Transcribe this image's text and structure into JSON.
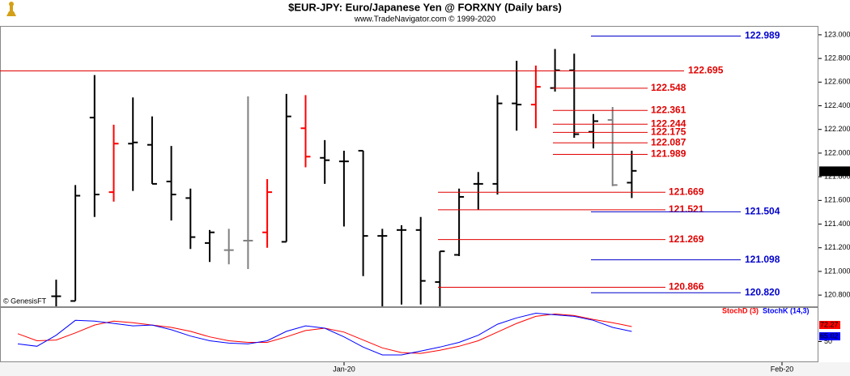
{
  "chart_data": {
    "type": "ohlc",
    "title": "$EUR-JPY:  Euro/Japanese Yen @ FORXNY  (Daily bars)",
    "subtitle": "www.TradeNavigator.com © 1999-2020",
    "credit": "© GenesisFT",
    "x_labels": [
      "Jan-20",
      "Feb-20"
    ],
    "ylim": [
      120.705,
      123.068
    ],
    "yticks": [
      {
        "value": 120.8,
        "label": "120.800"
      },
      {
        "value": 121.0,
        "label": "121.000"
      },
      {
        "value": 121.2,
        "label": "121.200"
      },
      {
        "value": 121.4,
        "label": "121.400"
      },
      {
        "value": 121.6,
        "label": "121.600"
      },
      {
        "value": 121.8,
        "label": "121.800"
      },
      {
        "value": 122.0,
        "label": "122.000"
      },
      {
        "value": 122.2,
        "label": "122.200"
      },
      {
        "value": 122.4,
        "label": "122.400"
      },
      {
        "value": 122.6,
        "label": "122.600"
      },
      {
        "value": 122.8,
        "label": "122.800"
      },
      {
        "value": 123.0,
        "label": "123.000"
      }
    ],
    "open": [
      null,
      null,
      120.79,
      120.75,
      122.3,
      121.67,
      122.08,
      122.07,
      121.76,
      121.62,
      121.24,
      121.18,
      121.26,
      121.33,
      121.25,
      122.21,
      121.96,
      121.93,
      122.02,
      121.3,
      121.35,
      121.35,
      120.91,
      121.14,
      121.74,
      121.74,
      122.42,
      122.41,
      122.55,
      122.7,
      122.18,
      122.28,
      121.75
    ],
    "high": [
      null,
      null,
      120.93,
      121.73,
      122.66,
      122.24,
      122.47,
      122.31,
      122.06,
      121.7,
      121.35,
      121.36,
      122.48,
      121.78,
      122.5,
      122.49,
      122.11,
      122.02,
      122.02,
      121.36,
      121.39,
      121.46,
      121.17,
      121.7,
      121.84,
      122.49,
      122.78,
      122.74,
      122.88,
      122.84,
      122.33,
      122.39,
      122.02
    ],
    "low": [
      null,
      null,
      120.7,
      120.75,
      121.46,
      121.59,
      121.68,
      121.74,
      121.43,
      121.19,
      121.08,
      121.06,
      121.02,
      121.2,
      121.25,
      121.88,
      121.74,
      121.38,
      120.96,
      120.7,
      120.72,
      120.72,
      120.7,
      121.13,
      121.52,
      121.65,
      122.19,
      122.21,
      122.52,
      122.13,
      122.04,
      121.72,
      121.62
    ],
    "close": [
      null,
      null,
      120.79,
      121.64,
      121.65,
      122.08,
      122.09,
      121.74,
      121.65,
      121.29,
      121.33,
      121.18,
      121.26,
      121.67,
      122.31,
      121.97,
      121.94,
      121.93,
      121.3,
      121.3,
      121.35,
      120.92,
      121.17,
      121.63,
      121.74,
      122.42,
      122.41,
      122.56,
      122.7,
      122.16,
      122.27,
      121.73,
      121.85
    ],
    "bar_colors": [
      null,
      null,
      "#000000",
      "#000000",
      "#000000",
      "#ff0000",
      "#000000",
      "#000000",
      "#000000",
      "#000000",
      "#000000",
      "#808080",
      "#808080",
      "#ff0000",
      "#000000",
      "#ff0000",
      "#000000",
      "#000000",
      "#000000",
      "#000000",
      "#000000",
      "#000000",
      "#000000",
      "#000000",
      "#000000",
      "#000000",
      "#000000",
      "#ff0000",
      "#000000",
      "#000000",
      "#000000",
      "#808080",
      "#000000"
    ],
    "last": {
      "value": 121.846,
      "label": "121.846"
    },
    "levels": [
      {
        "value": 122.989,
        "label": "122.989",
        "color": "#0000cc"
      },
      {
        "value": 122.695,
        "label": "122.695",
        "color": "#e00000"
      },
      {
        "value": 122.548,
        "label": "122.548",
        "color": "#e00000"
      },
      {
        "value": 122.361,
        "label": "122.361",
        "color": "#e00000"
      },
      {
        "value": 122.244,
        "label": "122.244",
        "color": "#e00000"
      },
      {
        "value": 122.175,
        "label": "122.175",
        "color": "#e00000"
      },
      {
        "value": 122.087,
        "label": "122.087",
        "color": "#e00000"
      },
      {
        "value": 121.989,
        "label": "121.989",
        "color": "#e00000"
      },
      {
        "value": 121.669,
        "label": "121.669",
        "color": "#e00000"
      },
      {
        "value": 121.521,
        "label": "121.521",
        "color": "#e00000"
      },
      {
        "value": 121.504,
        "label": "121.504",
        "color": "#0000cc"
      },
      {
        "value": 121.269,
        "label": "121.269",
        "color": "#e00000"
      },
      {
        "value": 121.098,
        "label": "121.098",
        "color": "#0000cc"
      },
      {
        "value": 120.866,
        "label": "120.866",
        "color": "#e00000"
      },
      {
        "value": 120.82,
        "label": "120.820",
        "color": "#0000cc"
      }
    ],
    "stoch": {
      "ylim": [
        0,
        100
      ],
      "yticks": [
        50
      ],
      "series": [
        {
          "name": "StochD (3)",
          "color": "#ff0000",
          "values": [
            61.7,
            51.2,
            52.3,
            62.9,
            74.6,
            80.5,
            78.1,
            74.6,
            71.1,
            65.2,
            57.0,
            51.2,
            48.8,
            48.8,
            57.0,
            66.4,
            69.9,
            64.1,
            52.3,
            40.6,
            33.6,
            32.4,
            37.1,
            43.0,
            51.2,
            64.1,
            77.0,
            87.5,
            91.0,
            88.7,
            82.8,
            78.1,
            72.27
          ],
          "value_labels": [
            null,
            null,
            null,
            null,
            null,
            null,
            null,
            null,
            null,
            null,
            null,
            null,
            null,
            null,
            null,
            null,
            null,
            null,
            null,
            null,
            null,
            null,
            null,
            null,
            null,
            null,
            null,
            null,
            null,
            null,
            null,
            null,
            "72.27"
          ]
        },
        {
          "name": "StochK (14,3)",
          "color": "#0000ff",
          "values": [
            46.5,
            43.0,
            59.4,
            81.6,
            80.5,
            77.0,
            73.4,
            74.6,
            67.6,
            58.2,
            51.2,
            47.7,
            46.5,
            51.2,
            65.2,
            73.4,
            69.9,
            57.0,
            41.8,
            30.1,
            30.1,
            35.9,
            41.8,
            48.8,
            59.4,
            75.8,
            85.2,
            92.2,
            89.8,
            87.5,
            81.6,
            71.1,
            65.02
          ],
          "value_labels": [
            null,
            null,
            null,
            null,
            null,
            null,
            null,
            null,
            null,
            null,
            null,
            null,
            null,
            null,
            null,
            null,
            null,
            null,
            null,
            null,
            null,
            null,
            null,
            null,
            null,
            null,
            null,
            null,
            null,
            null,
            null,
            null,
            "65.02"
          ]
        }
      ]
    }
  }
}
